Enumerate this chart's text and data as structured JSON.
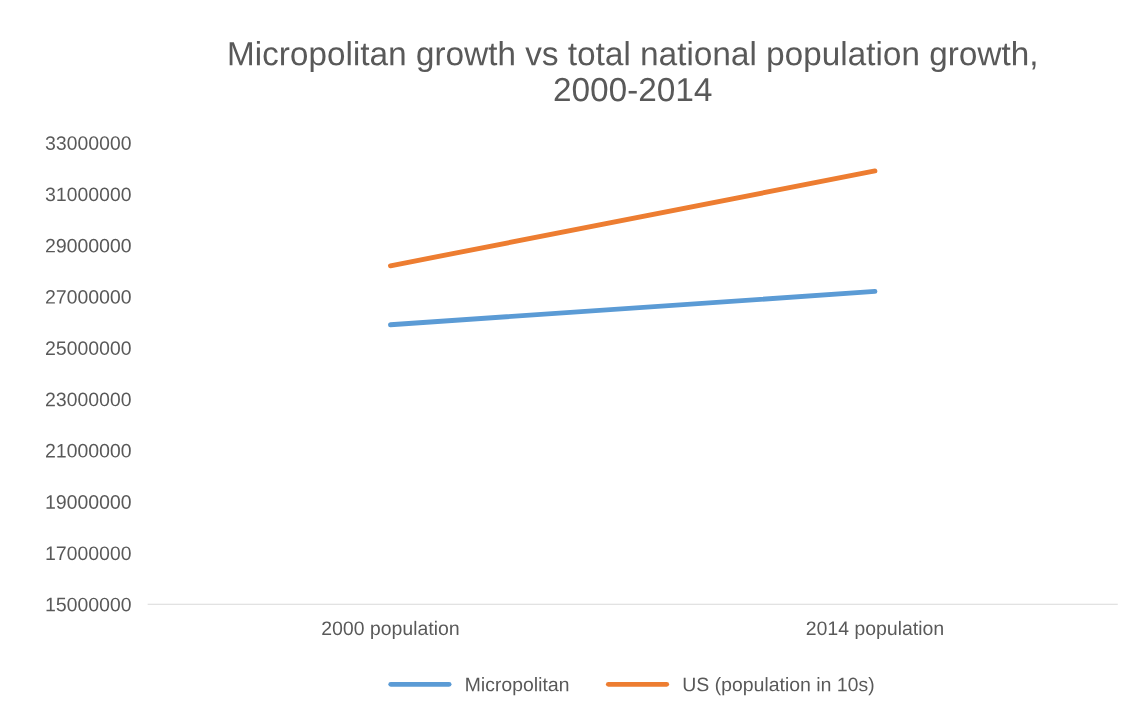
{
  "chart_data": {
    "type": "line",
    "title": "Micropolitan growth vs total national population growth,\n2000-2014",
    "categories": [
      "2000 population",
      "2014 population"
    ],
    "series": [
      {
        "name": "Micropolitan",
        "color": "#5b9bd5",
        "values": [
          25900000,
          27200000
        ]
      },
      {
        "name": "US (population in 10s)",
        "color": "#ed7d31",
        "values": [
          28200000,
          31900000
        ]
      }
    ],
    "ylim": [
      15000000,
      33000000
    ],
    "yticks": [
      15000000,
      17000000,
      19000000,
      21000000,
      23000000,
      25000000,
      27000000,
      29000000,
      31000000,
      33000000
    ],
    "grid": false,
    "legend": "bottom",
    "marker": "none",
    "line_style": "solid"
  }
}
